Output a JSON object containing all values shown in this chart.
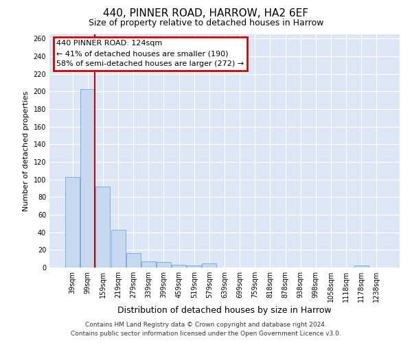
{
  "title": "440, PINNER ROAD, HARROW, HA2 6EF",
  "subtitle": "Size of property relative to detached houses in Harrow",
  "xlabel": "Distribution of detached houses by size in Harrow",
  "ylabel": "Number of detached properties",
  "footer_line1": "Contains HM Land Registry data © Crown copyright and database right 2024.",
  "footer_line2": "Contains public sector information licensed under the Open Government Licence v3.0.",
  "annotation_line1": "440 PINNER ROAD: 124sqm",
  "annotation_line2": "← 41% of detached houses are smaller (190)",
  "annotation_line3": "58% of semi-detached houses are larger (272) →",
  "bar_color": "#c5d8f0",
  "bar_edge_color": "#7bafd4",
  "background_color": "#dce6f5",
  "red_line_color": "#cc0000",
  "annotation_box_color": "#cc0000",
  "categories": [
    "39sqm",
    "99sqm",
    "159sqm",
    "219sqm",
    "279sqm",
    "339sqm",
    "399sqm",
    "459sqm",
    "519sqm",
    "579sqm",
    "639sqm",
    "699sqm",
    "759sqm",
    "818sqm",
    "878sqm",
    "938sqm",
    "998sqm",
    "1058sqm",
    "1118sqm",
    "1178sqm",
    "1238sqm"
  ],
  "values": [
    103,
    203,
    92,
    43,
    16,
    7,
    6,
    3,
    2,
    5,
    0,
    0,
    0,
    0,
    0,
    0,
    0,
    0,
    0,
    2,
    0
  ],
  "ylim": [
    0,
    265
  ],
  "yticks": [
    0,
    20,
    40,
    60,
    80,
    100,
    120,
    140,
    160,
    180,
    200,
    220,
    240,
    260
  ],
  "red_line_x": 1.48,
  "title_fontsize": 11,
  "subtitle_fontsize": 9,
  "ylabel_fontsize": 8,
  "xlabel_fontsize": 9,
  "tick_fontsize": 7,
  "footer_fontsize": 6.5,
  "annot_fontsize": 8
}
